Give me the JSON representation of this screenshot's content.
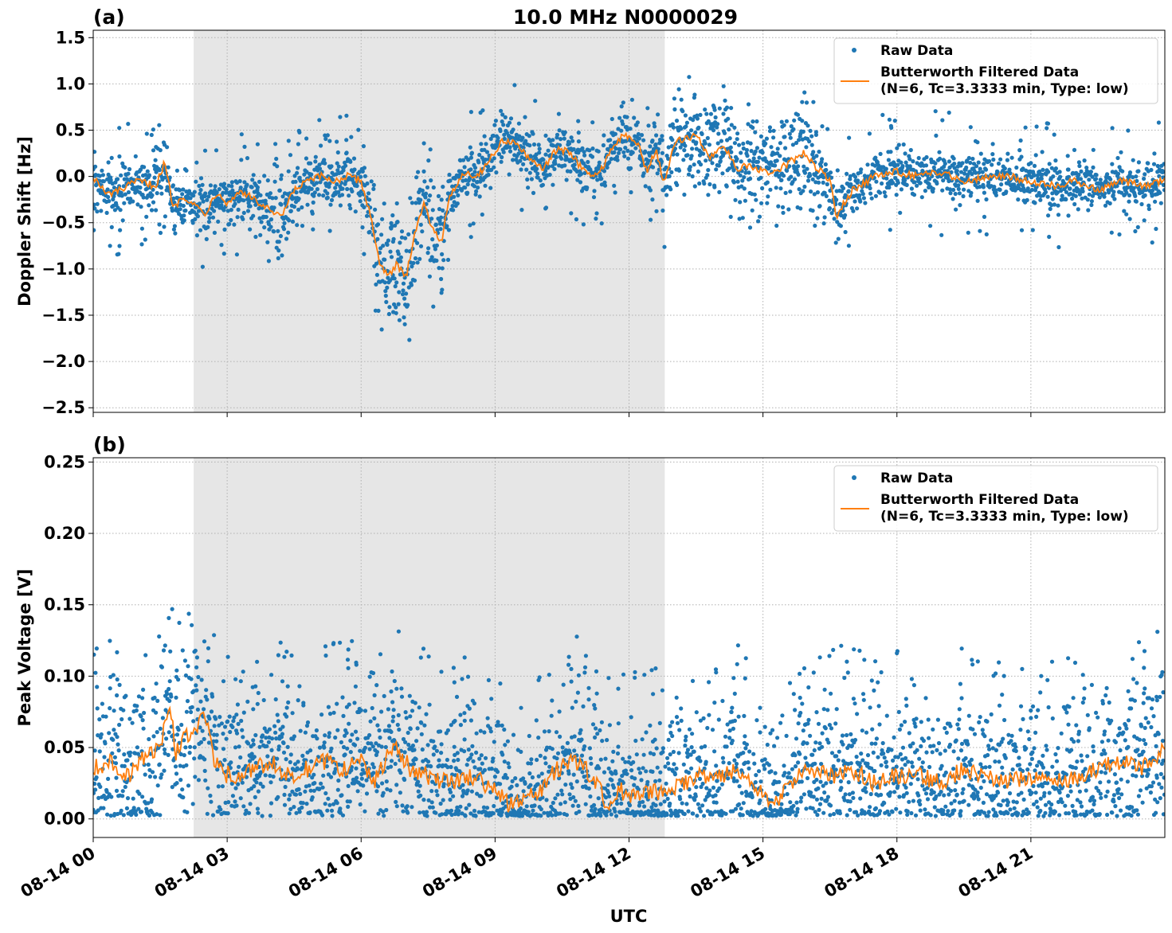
{
  "title": "10.0 MHz N0000029",
  "xlabel": "UTC",
  "x_ticks": [
    "08-14 00",
    "08-14 03",
    "08-14 06",
    "08-14 09",
    "08-14 12",
    "08-14 15",
    "08-14 18",
    "08-14 21"
  ],
  "colors": {
    "raw": "#1f77b4",
    "filtered": "#ff7f0e",
    "shade": "#e6e6e6",
    "grid": "#b0b0b0"
  },
  "chart_data": [
    {
      "panel_label": "(a)",
      "type": "scatter",
      "ylabel": "Doppler Shift [Hz]",
      "ylim": [
        -2.55,
        1.58
      ],
      "y_ticks": [
        "1.5",
        "1.0",
        "0.5",
        "0.0",
        "−0.5",
        "−1.0",
        "−1.5",
        "−2.0",
        "−2.5"
      ],
      "y_tick_values": [
        1.5,
        1.0,
        0.5,
        0.0,
        -0.5,
        -1.0,
        -1.5,
        -2.0,
        -2.5
      ],
      "xlim_hours": [
        0,
        24
      ],
      "shaded_interval_hours": [
        2.25,
        12.8
      ],
      "grid": true,
      "legend_position": "top-right",
      "legend": {
        "raw": "Raw Data",
        "filtered_line1": "Butterworth Filtered Data",
        "filtered_line2": "(N=6, Tc=3.3333 min, Type: low)"
      },
      "series": [
        {
          "name": "Butterworth Filtered Data",
          "x": [
            0,
            0.3,
            0.6,
            1.0,
            1.4,
            1.6,
            1.8,
            2.0,
            2.25,
            2.5,
            2.8,
            3.0,
            3.3,
            3.6,
            3.9,
            4.2,
            4.5,
            4.8,
            5.1,
            5.4,
            5.7,
            6.0,
            6.2,
            6.4,
            6.6,
            6.8,
            7.0,
            7.2,
            7.4,
            7.6,
            7.8,
            8.0,
            8.3,
            8.6,
            8.9,
            9.2,
            9.5,
            9.8,
            10.1,
            10.4,
            10.7,
            11.0,
            11.3,
            11.6,
            11.9,
            12.2,
            12.4,
            12.6,
            12.8,
            13.0,
            13.2,
            13.5,
            13.8,
            14.1,
            14.4,
            14.7,
            15.0,
            15.3,
            15.6,
            15.9,
            16.2,
            16.5,
            16.65,
            16.8,
            17.0,
            17.5,
            18.0,
            18.5,
            19.0,
            19.5,
            20.0,
            20.5,
            21.0,
            21.5,
            22.0,
            22.5,
            23.0,
            23.5,
            24.0
          ],
          "y": [
            0.0,
            -0.2,
            -0.15,
            -0.05,
            -0.1,
            0.15,
            -0.35,
            -0.2,
            -0.3,
            -0.4,
            -0.15,
            -0.3,
            -0.15,
            -0.25,
            -0.35,
            -0.45,
            -0.15,
            -0.05,
            0.0,
            -0.05,
            0.0,
            -0.05,
            -0.4,
            -0.9,
            -1.1,
            -0.95,
            -1.1,
            -0.6,
            -0.3,
            -0.55,
            -0.7,
            -0.2,
            0.05,
            0.0,
            0.2,
            0.4,
            0.35,
            0.15,
            0.1,
            0.3,
            0.25,
            0.05,
            0.0,
            0.3,
            0.45,
            0.35,
            0.05,
            0.3,
            -0.1,
            0.35,
            0.4,
            0.45,
            0.2,
            0.35,
            0.1,
            0.1,
            0.05,
            0.05,
            0.15,
            0.25,
            0.1,
            -0.05,
            -0.45,
            -0.3,
            -0.15,
            0.0,
            0.05,
            0.0,
            0.05,
            -0.05,
            0.0,
            0.0,
            -0.05,
            -0.1,
            -0.05,
            -0.15,
            -0.05,
            -0.1,
            -0.05
          ]
        }
      ]
    },
    {
      "panel_label": "(b)",
      "type": "scatter",
      "ylabel": "Peak Voltage [V]",
      "ylim": [
        -0.013,
        0.253
      ],
      "y_ticks": [
        "0.25",
        "0.20",
        "0.15",
        "0.10",
        "0.05",
        "0.00"
      ],
      "y_tick_values": [
        0.25,
        0.2,
        0.15,
        0.1,
        0.05,
        0.0
      ],
      "xlim_hours": [
        0,
        24
      ],
      "shaded_interval_hours": [
        2.25,
        12.8
      ],
      "grid": true,
      "legend_position": "top-right",
      "legend": {
        "raw": "Raw Data",
        "filtered_line1": "Butterworth Filtered Data",
        "filtered_line2": "(N=6, Tc=3.3333 min, Type: low)"
      },
      "series": [
        {
          "name": "Butterworth Filtered Data",
          "x": [
            0,
            0.4,
            0.8,
            1.2,
            1.5,
            1.7,
            1.85,
            2.0,
            2.3,
            2.5,
            2.7,
            2.9,
            3.2,
            3.6,
            4.0,
            4.4,
            4.8,
            5.2,
            5.6,
            6.0,
            6.3,
            6.6,
            6.8,
            7.1,
            7.5,
            8.0,
            8.5,
            9.0,
            9.3,
            9.6,
            10.0,
            10.4,
            10.8,
            11.2,
            11.5,
            11.8,
            12.1,
            12.5,
            12.8,
            13.2,
            13.6,
            14.0,
            14.4,
            14.8,
            15.1,
            15.3,
            15.6,
            16.0,
            16.5,
            17.0,
            17.5,
            18.0,
            18.5,
            19.0,
            19.5,
            20.0,
            20.5,
            21.0,
            21.5,
            22.0,
            22.5,
            23.0,
            23.5,
            24.0
          ],
          "y": [
            0.035,
            0.04,
            0.03,
            0.045,
            0.05,
            0.085,
            0.045,
            0.055,
            0.065,
            0.075,
            0.04,
            0.032,
            0.03,
            0.035,
            0.04,
            0.03,
            0.035,
            0.04,
            0.035,
            0.04,
            0.025,
            0.045,
            0.05,
            0.035,
            0.03,
            0.025,
            0.03,
            0.02,
            0.01,
            0.012,
            0.02,
            0.035,
            0.04,
            0.03,
            0.01,
            0.02,
            0.015,
            0.02,
            0.018,
            0.025,
            0.03,
            0.028,
            0.035,
            0.02,
            0.015,
            0.01,
            0.025,
            0.035,
            0.03,
            0.035,
            0.025,
            0.03,
            0.03,
            0.025,
            0.035,
            0.03,
            0.025,
            0.03,
            0.025,
            0.03,
            0.035,
            0.04,
            0.035,
            0.05
          ]
        }
      ]
    }
  ]
}
